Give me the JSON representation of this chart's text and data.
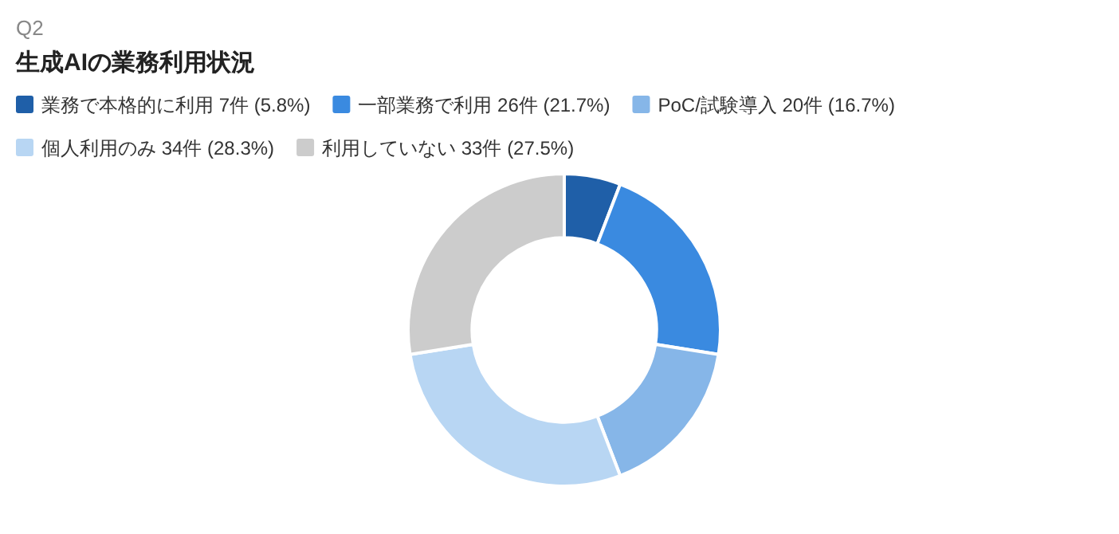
{
  "chart_data": {
    "type": "donut",
    "subtitle": "Q2",
    "title": "生成AIの業務利用状況",
    "categories": [
      "業務で本格的に利用 7件 (5.8%)",
      "一部業務で利用 26件 (21.7%)",
      "PoC/試験導入 20件 (16.7%)",
      "個人利用のみ 34件 (28.3%)",
      "利用していない 33件 (27.5%)"
    ],
    "values": [
      7,
      26,
      20,
      34,
      33
    ],
    "colors": [
      "#1f5fa8",
      "#3a8ae0",
      "#86b6e8",
      "#b8d6f3",
      "#cccccc"
    ],
    "legend": "top left"
  }
}
